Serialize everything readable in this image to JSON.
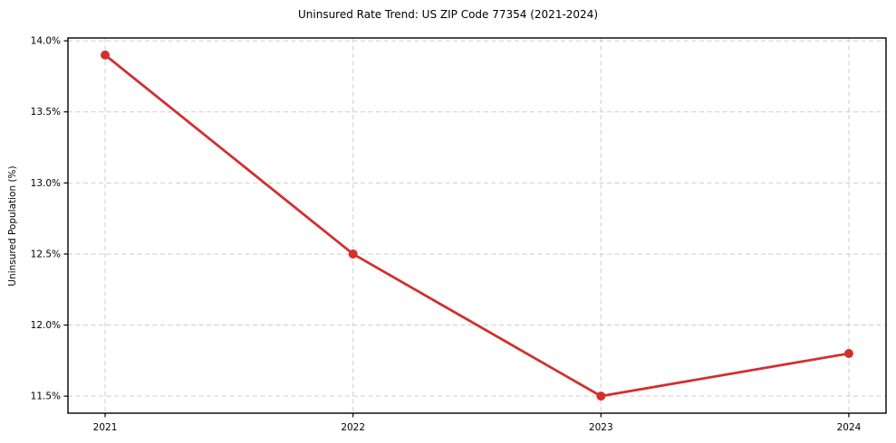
{
  "chart_data": {
    "type": "line",
    "title": "Uninsured Rate Trend: US ZIP Code 77354 (2021-2024)",
    "xlabel": "",
    "ylabel": "Uninsured Population (%)",
    "x": [
      2021,
      2022,
      2023,
      2024
    ],
    "x_tick_labels": [
      "2021",
      "2022",
      "2023",
      "2024"
    ],
    "series": [
      {
        "name": "uninsured-rate",
        "values": [
          13.9,
          12.5,
          11.5,
          11.8
        ],
        "color": "#d32f2f",
        "marker": "circle"
      }
    ],
    "y_ticks": [
      11.5,
      12.0,
      12.5,
      13.0,
      13.5,
      14.0
    ],
    "y_tick_labels": [
      "11.5%",
      "12.0%",
      "12.5%",
      "13.0%",
      "13.5%",
      "14.0%"
    ],
    "xlim": [
      2020.85,
      2024.15
    ],
    "ylim": [
      11.38,
      14.02
    ],
    "grid": "both-dashed",
    "grid_color": "#cdcdcd",
    "axis_color": "#000000",
    "tick_label_color": "#000000",
    "background": "#ffffff",
    "legend": "none"
  }
}
